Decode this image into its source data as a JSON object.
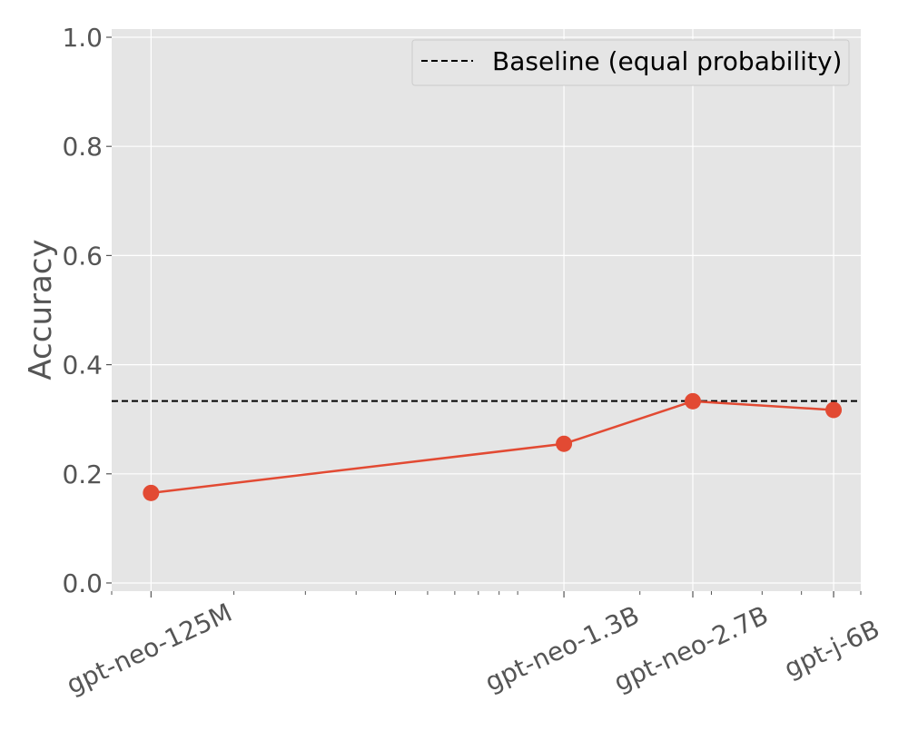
{
  "chart_data": {
    "type": "line",
    "title": "",
    "xlabel": "",
    "ylabel": "Accuracy",
    "x_scale": "log",
    "x_unit": "model parameters",
    "categories": [
      "gpt-neo-125M",
      "gpt-neo-1.3B",
      "gpt-neo-2.7B",
      "gpt-j-6B"
    ],
    "x": [
      125000000,
      1300000000,
      2700000000,
      6000000000
    ],
    "series": [
      {
        "values": [
          0.165,
          0.255,
          0.333,
          0.317
        ],
        "color": "#E24A33",
        "marker": "circle"
      }
    ],
    "baseline": {
      "label": "Baseline (equal probability)",
      "value": 0.3333,
      "style": "dashed",
      "color": "#000000"
    },
    "xlim": [
      100000000,
      7000000000
    ],
    "ylim": [
      -0.015,
      1.015
    ],
    "yticks": [
      "0.0",
      "0.2",
      "0.4",
      "0.6",
      "0.8",
      "1.0"
    ],
    "ytick_values": [
      0.0,
      0.2,
      0.4,
      0.6,
      0.8,
      1.0
    ],
    "grid": true,
    "legend_position": "top-right",
    "style": "ggplot",
    "background_color": "#E5E5E5",
    "grid_color": "#FFFFFF",
    "tick_color": "#555555"
  }
}
